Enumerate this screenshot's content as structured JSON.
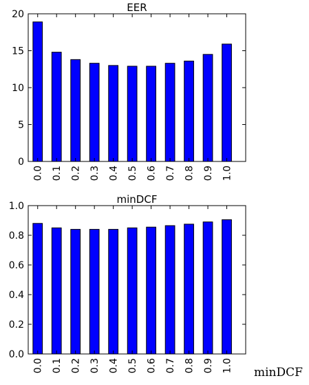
{
  "figure_caption": "minDCF",
  "bar_color": "#0000ff",
  "edge_color": "#000000",
  "chart_data": [
    {
      "type": "bar",
      "title": "EER",
      "categories": [
        "0.0",
        "0.1",
        "0.2",
        "0.3",
        "0.4",
        "0.5",
        "0.6",
        "0.7",
        "0.8",
        "0.9",
        "1.0"
      ],
      "values": [
        18.9,
        14.8,
        13.8,
        13.3,
        13.0,
        12.9,
        12.9,
        13.3,
        13.6,
        14.5,
        15.9
      ],
      "ylim": [
        0,
        20
      ],
      "yticks": [
        "0",
        "5",
        "10",
        "15",
        "20"
      ],
      "xlabel": "",
      "ylabel": "",
      "grid": false
    },
    {
      "type": "bar",
      "title": "minDCF",
      "categories": [
        "0.0",
        "0.1",
        "0.2",
        "0.3",
        "0.4",
        "0.5",
        "0.6",
        "0.7",
        "0.8",
        "0.9",
        "1.0"
      ],
      "values": [
        0.88,
        0.85,
        0.84,
        0.84,
        0.84,
        0.85,
        0.855,
        0.865,
        0.875,
        0.89,
        0.905
      ],
      "ylim": [
        0,
        1.0
      ],
      "yticks": [
        "0.0",
        "0.2",
        "0.4",
        "0.6",
        "0.8",
        "1.0"
      ],
      "xlabel": "",
      "ylabel": "",
      "grid": false
    }
  ]
}
